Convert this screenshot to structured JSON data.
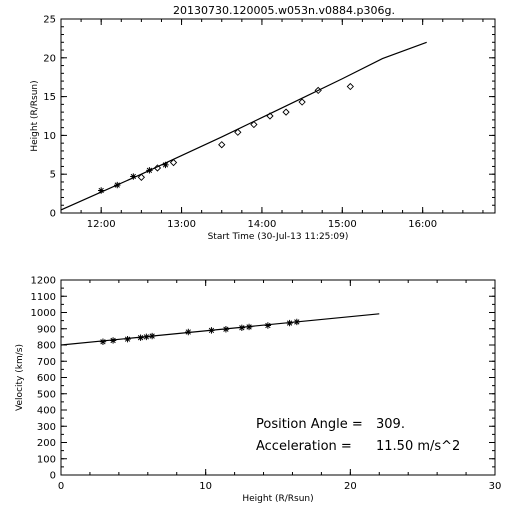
{
  "figure_title": "20130730.120005.w053n.v0884.p306g.",
  "chart_data": [
    {
      "type": "scatter",
      "id": "height-time",
      "xlabel": "Start Time (30-Jul-13 11:25:09)",
      "ylabel": "Height (R/Rsun)",
      "xlim": [
        11.5,
        16.9
      ],
      "ylim": [
        0,
        25
      ],
      "xticks": [
        {
          "value": 12,
          "label": "12:00"
        },
        {
          "value": 13,
          "label": "13:00"
        },
        {
          "value": 14,
          "label": "14:00"
        },
        {
          "value": 15,
          "label": "15:00"
        },
        {
          "value": 16,
          "label": "16:00"
        }
      ],
      "yticks": [
        0,
        5,
        10,
        15,
        20,
        25
      ],
      "grid": false,
      "series": [
        {
          "marker": "asterisk",
          "x": [
            12.0,
            12.2,
            12.4,
            12.6,
            12.8
          ],
          "y": [
            2.9,
            3.6,
            4.7,
            5.5,
            6.2
          ]
        },
        {
          "marker": "diamond",
          "x": [
            12.5,
            12.7,
            12.9,
            13.5,
            13.7,
            13.9,
            14.1,
            14.3,
            14.5,
            14.7,
            15.1
          ],
          "y": [
            4.6,
            5.8,
            6.5,
            8.8,
            10.4,
            11.4,
            12.5,
            13.0,
            14.3,
            15.8,
            16.3
          ]
        },
        {
          "marker": "line",
          "x": [
            11.5,
            12.0,
            12.5,
            13.0,
            13.5,
            14.0,
            14.5,
            15.0,
            15.5,
            16.05
          ],
          "y": [
            0.4,
            2.7,
            5.0,
            7.4,
            9.8,
            12.3,
            14.8,
            17.3,
            19.9,
            22.0
          ]
        }
      ]
    },
    {
      "type": "scatter",
      "id": "velocity-height",
      "xlabel": "Height (R/Rsun)",
      "ylabel": "Velocity (km/s)",
      "xlim": [
        0,
        30
      ],
      "ylim": [
        0,
        1200
      ],
      "xticks": [
        0,
        10,
        20,
        30
      ],
      "yticks": [
        0,
        100,
        200,
        300,
        400,
        500,
        600,
        700,
        800,
        900,
        1000,
        1100,
        1200
      ],
      "grid": false,
      "series": [
        {
          "marker": "asterisk",
          "x": [
            2.9,
            3.6,
            4.6,
            5.5,
            5.9,
            6.3,
            8.8,
            10.4,
            11.4,
            12.5,
            13.0,
            14.3,
            15.8,
            16.3
          ],
          "y": [
            820,
            828,
            836,
            845,
            850,
            855,
            880,
            890,
            897,
            906,
            911,
            920,
            935,
            942
          ]
        },
        {
          "marker": "line",
          "x": [
            0,
            22
          ],
          "y": [
            800,
            992
          ]
        }
      ],
      "annotations": [
        {
          "label": "Position Angle =",
          "value": "309."
        },
        {
          "label": "Acceleration =",
          "value": "11.50 m/s^2"
        }
      ]
    }
  ]
}
